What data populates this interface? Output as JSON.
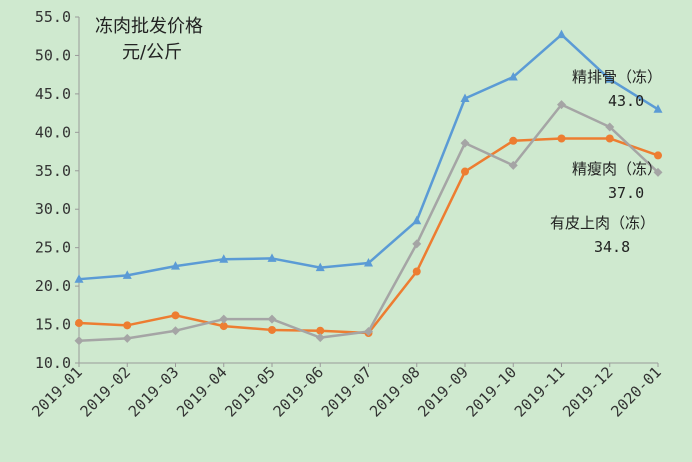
{
  "chart_data": {
    "type": "line",
    "title": "冻肉批发价格",
    "ylabel": "元/公斤",
    "xlabel": "",
    "categories": [
      "2019-01",
      "2019-02",
      "2019-03",
      "2019-04",
      "2019-05",
      "2019-06",
      "2019-07",
      "2019-08",
      "2019-09",
      "2019-10",
      "2019-11",
      "2019-12",
      "2020-01"
    ],
    "ylim": [
      10.0,
      55.0
    ],
    "yticks": [
      "10.0",
      "15.0",
      "20.0",
      "25.0",
      "30.0",
      "35.0",
      "40.0",
      "45.0",
      "50.0",
      "55.0"
    ],
    "grid": false,
    "legend": "none",
    "series": [
      {
        "name": "精排骨（冻）",
        "color": "#5b9bd5",
        "marker": "triangle",
        "values": [
          20.9,
          21.4,
          22.6,
          23.5,
          23.6,
          22.4,
          23.0,
          28.5,
          44.4,
          47.2,
          52.7,
          46.9,
          43.0
        ]
      },
      {
        "name": "精瘦肉（冻）",
        "color": "#ed7d31",
        "marker": "circle",
        "values": [
          15.2,
          14.9,
          16.2,
          14.8,
          14.3,
          14.2,
          13.9,
          21.9,
          34.9,
          38.9,
          39.2,
          39.2,
          37.0
        ]
      },
      {
        "name": "有皮上肉（冻）",
        "color": "#a5a5a5",
        "marker": "diamond",
        "values": [
          12.9,
          13.2,
          14.2,
          15.7,
          15.7,
          13.3,
          14.1,
          25.5,
          38.6,
          35.7,
          43.6,
          40.7,
          34.8
        ]
      }
    ],
    "annotations": [
      {
        "label": "精排骨（冻）",
        "value": "43.0"
      },
      {
        "label": "精瘦肉（冻）",
        "value": "37.0"
      },
      {
        "label": "有皮上肉（冻）",
        "value": "34.8"
      }
    ]
  }
}
